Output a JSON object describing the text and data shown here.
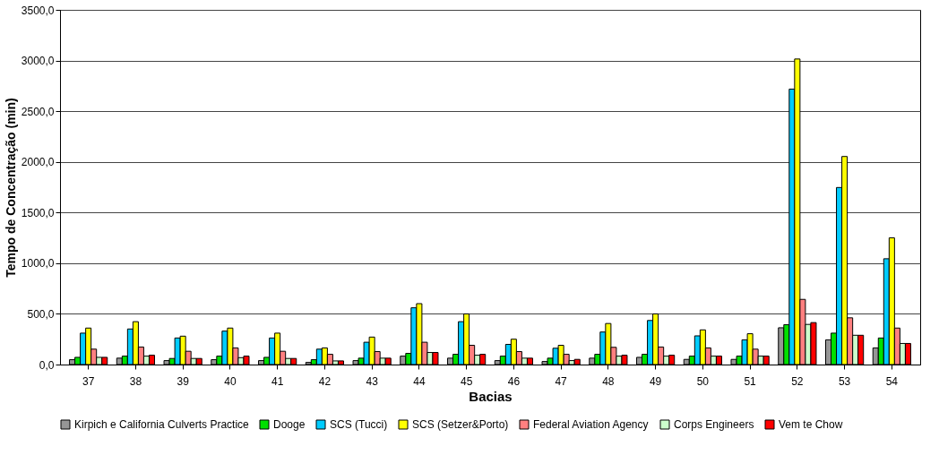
{
  "chart_data": {
    "type": "bar",
    "xlabel": "Bacias",
    "ylabel": "Tempo de Concentração (min)",
    "categories": [
      "37",
      "38",
      "39",
      "40",
      "41",
      "42",
      "43",
      "44",
      "45",
      "46",
      "47",
      "48",
      "49",
      "50",
      "51",
      "52",
      "53",
      "54"
    ],
    "series": [
      {
        "name": "Kirpich e California Culverts Practice",
        "color": "#969696",
        "values": [
          48,
          63,
          39,
          48,
          39,
          21,
          39,
          83,
          63,
          39,
          30,
          63,
          71,
          51,
          51,
          363,
          244,
          164
        ]
      },
      {
        "name": "Dooge",
        "color": "#00e000",
        "values": [
          71,
          83,
          60,
          83,
          71,
          48,
          63,
          110,
          101,
          83,
          63,
          101,
          101,
          83,
          83,
          393,
          310,
          262
        ]
      },
      {
        "name": "SCS (Tucci)",
        "color": "#00ccff",
        "values": [
          310,
          351,
          262,
          330,
          262,
          152,
          220,
          560,
          423,
          199,
          161,
          321,
          435,
          283,
          244,
          2718,
          1747,
          1044
        ]
      },
      {
        "name": "SCS (Setzer&Porto)",
        "color": "#ffff00",
        "values": [
          360,
          423,
          280,
          360,
          310,
          164,
          271,
          601,
          500,
          250,
          190,
          405,
          500,
          342,
          304,
          3015,
          2053,
          1250
        ]
      },
      {
        "name": "Federal Aviation Agency",
        "color": "#ff8080",
        "values": [
          152,
          173,
          131,
          164,
          131,
          101,
          128,
          220,
          190,
          128,
          101,
          170,
          173,
          164,
          152,
          643,
          461,
          360
        ]
      },
      {
        "name": "Corps Engineers",
        "color": "#ccffcc",
        "values": [
          71,
          83,
          60,
          68,
          60,
          36,
          63,
          119,
          92,
          63,
          39,
          83,
          83,
          83,
          83,
          396,
          289,
          208
        ]
      },
      {
        "name": "Vem te Chow",
        "color": "#ff0000",
        "values": [
          71,
          92,
          60,
          83,
          60,
          36,
          63,
          119,
          101,
          63,
          51,
          92,
          92,
          83,
          83,
          414,
          289,
          208
        ]
      }
    ],
    "ylim": [
      0,
      3500
    ],
    "yticks": [
      {
        "value": 0,
        "label": "0,0"
      },
      {
        "value": 500,
        "label": "500,0"
      },
      {
        "value": 1000,
        "label": "1000,0"
      },
      {
        "value": 1500,
        "label": "1500,0"
      },
      {
        "value": 2000,
        "label": "2000,0"
      },
      {
        "value": 2500,
        "label": "2500,0"
      },
      {
        "value": 3000,
        "label": "3000,0"
      },
      {
        "value": 3500,
        "label": "3500,0"
      }
    ],
    "grid": "y",
    "legend": "bottom"
  }
}
